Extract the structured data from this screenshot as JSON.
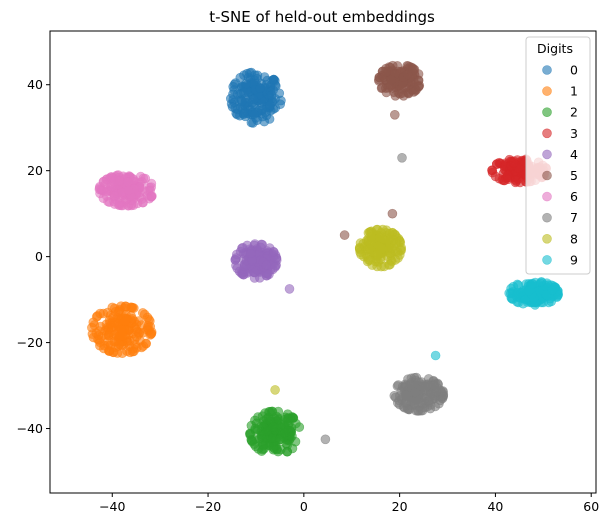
{
  "chart_data": {
    "type": "scatter",
    "title": "t-SNE of held-out embeddings",
    "xlabel": "",
    "ylabel": "",
    "xlim": [
      -53,
      61
    ],
    "ylim": [
      -55,
      52.5
    ],
    "xticks": [
      -40,
      -20,
      0,
      20,
      40,
      60
    ],
    "yticks": [
      -40,
      -20,
      0,
      20,
      40
    ],
    "grid": false,
    "legend": {
      "title": "Digits",
      "placement": "top-right"
    },
    "series": [
      {
        "name": "0",
        "color": "#1f77b4",
        "center": [
          -10,
          37
        ],
        "spread": [
          4.6,
          5.2
        ],
        "count": 160
      },
      {
        "name": "1",
        "color": "#ff7f0e",
        "center": [
          -38,
          -17
        ],
        "spread": [
          5.5,
          4.8
        ],
        "count": 170
      },
      {
        "name": "2",
        "color": "#2ca02c",
        "center": [
          -6,
          -41
        ],
        "spread": [
          4.6,
          4.4
        ],
        "count": 160
      },
      {
        "name": "3",
        "color": "#d62728",
        "center": [
          45,
          20
        ],
        "spread": [
          5.0,
          2.4
        ],
        "count": 150
      },
      {
        "name": "4",
        "color": "#9467bd",
        "center": [
          -10,
          -1
        ],
        "spread": [
          3.8,
          3.5
        ],
        "count": 150
      },
      {
        "name": "5",
        "color": "#8c564b",
        "center": [
          20,
          41
        ],
        "spread": [
          3.8,
          3.2
        ],
        "count": 140
      },
      {
        "name": "6",
        "color": "#e377c2",
        "center": [
          -37,
          15.5
        ],
        "spread": [
          5.0,
          3.2
        ],
        "count": 160
      },
      {
        "name": "7",
        "color": "#7f7f7f",
        "center": [
          24,
          -32
        ],
        "spread": [
          4.5,
          3.4
        ],
        "count": 160
      },
      {
        "name": "8",
        "color": "#bcbd22",
        "center": [
          16,
          2
        ],
        "spread": [
          3.8,
          3.8
        ],
        "count": 150
      },
      {
        "name": "9",
        "color": "#17becf",
        "center": [
          48,
          -8.5
        ],
        "spread": [
          4.5,
          2.4
        ],
        "count": 150
      }
    ],
    "outliers": [
      {
        "series": "5",
        "x": 19,
        "y": 33
      },
      {
        "series": "9",
        "x": 27.5,
        "y": -23
      },
      {
        "series": "7",
        "x": 4.5,
        "y": -42.5
      },
      {
        "series": "8",
        "x": -6,
        "y": -31
      },
      {
        "series": "5",
        "x": 8.5,
        "y": 5
      },
      {
        "series": "5",
        "x": 18.5,
        "y": 10
      },
      {
        "series": "4",
        "x": -3,
        "y": -7.5
      },
      {
        "series": "7",
        "x": 20.5,
        "y": 23
      }
    ]
  }
}
